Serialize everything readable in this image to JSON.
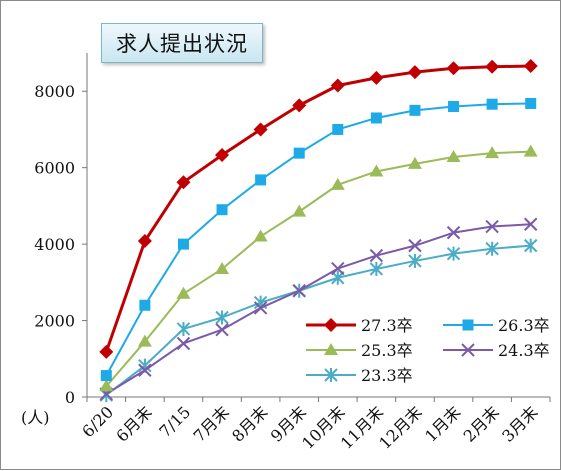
{
  "title": "求人提出状況",
  "chart_data": {
    "type": "line",
    "title": "求人提出状況",
    "xlabel": "",
    "ylabel": "",
    "y_unit": "(人)",
    "ylim": [
      0,
      9000
    ],
    "yticks": [
      0,
      2000,
      4000,
      6000,
      8000
    ],
    "grid": false,
    "legend_position": "bottom-right",
    "categories": [
      "6/20",
      "6月末",
      "7/15",
      "7月末",
      "8月末",
      "9月末",
      "10月末",
      "11月末",
      "12月末",
      "1月末",
      "2月末",
      "3月末"
    ],
    "series": [
      {
        "name": "27.3卒",
        "color": "#c00000",
        "marker": "diamond",
        "values": [
          1180,
          4080,
          5620,
          6330,
          7000,
          7630,
          8150,
          8350,
          8500,
          8600,
          8640,
          8660
        ]
      },
      {
        "name": "26.3卒",
        "color": "#1eaae6",
        "marker": "square",
        "values": [
          560,
          2400,
          4000,
          4900,
          5680,
          6380,
          7000,
          7300,
          7500,
          7600,
          7660,
          7680
        ]
      },
      {
        "name": "25.3卒",
        "color": "#9bbb59",
        "marker": "triangle",
        "values": [
          280,
          1450,
          2700,
          3350,
          4200,
          4850,
          5550,
          5900,
          6100,
          6280,
          6380,
          6420
        ]
      },
      {
        "name": "24.3卒",
        "color": "#7b5aa8",
        "marker": "x",
        "values": [
          80,
          700,
          1400,
          1760,
          2330,
          2780,
          3360,
          3700,
          3960,
          4300,
          4460,
          4520
        ]
      },
      {
        "name": "23.3卒",
        "color": "#4bacc6",
        "marker": "asterisk",
        "values": [
          50,
          820,
          1780,
          2080,
          2470,
          2780,
          3120,
          3350,
          3560,
          3750,
          3880,
          3960
        ]
      }
    ]
  }
}
